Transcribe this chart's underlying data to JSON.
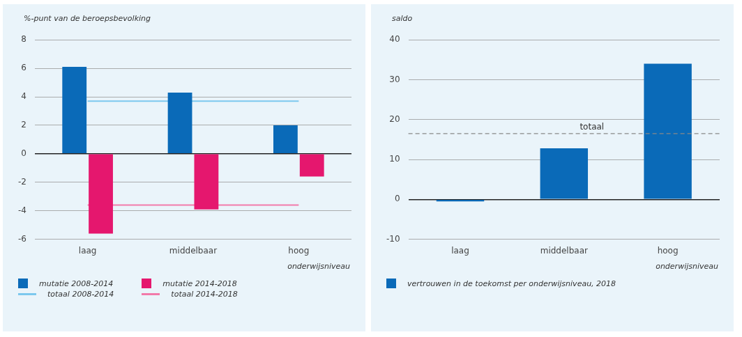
{
  "chart_data": [
    {
      "type": "bar",
      "ylabel": "%-punt van de beroepsbevolking",
      "xlabel": "onderwijsniveau",
      "categories": [
        "laag",
        "middelbaar",
        "hoog"
      ],
      "series": [
        {
          "name": "mutatie 2008-2014",
          "color": "#0a6ab8",
          "values": [
            6.1,
            4.3,
            2.0
          ]
        },
        {
          "name": "mutatie 2014-2018",
          "color": "#e5176e",
          "values": [
            -5.6,
            -3.9,
            -1.6
          ]
        },
        {
          "name": "totaal 2008-2014",
          "type": "line",
          "color": "#7cc8ee",
          "values": [
            3.7,
            3.7,
            3.7
          ]
        },
        {
          "name": "totaal 2014-2018",
          "type": "line",
          "color": "#f27aaa",
          "values": [
            -3.6,
            -3.6,
            -3.6
          ]
        }
      ],
      "ylim": [
        -6,
        8
      ],
      "yticks": [
        -6,
        -4,
        -2,
        0,
        2,
        4,
        6,
        8
      ],
      "grid": "y",
      "legend": "bottom",
      "marker": "none"
    },
    {
      "type": "bar",
      "ylabel": "saldo",
      "xlabel": "onderwijsniveau",
      "categories": [
        "laag",
        "middelbaar",
        "hoog"
      ],
      "series": [
        {
          "name": "vertrouwen in de toekomst per onderwijsniveau, 2018",
          "color": "#0a6ab8",
          "values": [
            -0.5,
            12.8,
            34.0
          ]
        }
      ],
      "ref_lines": [
        {
          "axis": "y",
          "value": 16.5,
          "label": "totaal",
          "color": "#888888",
          "line_style": "dashed"
        }
      ],
      "ylim": [
        -10,
        40
      ],
      "yticks": [
        -10,
        0,
        10,
        20,
        30,
        40
      ],
      "grid": "y",
      "legend": "bottom"
    }
  ]
}
